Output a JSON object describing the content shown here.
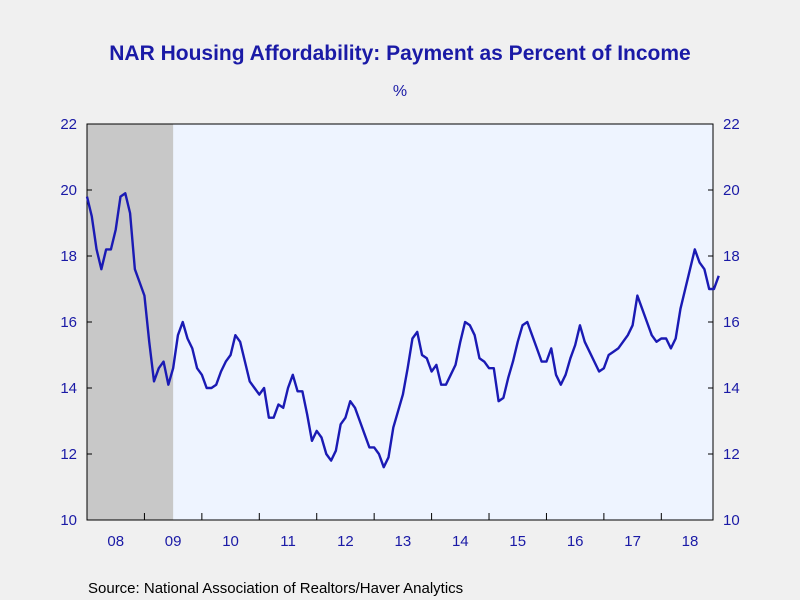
{
  "chart_data": {
    "type": "line",
    "title": "NAR Housing Affordability: Payment as Percent of Income",
    "unit": "%",
    "source": "Source:  National Association of Realtors/Haver Analytics",
    "ylim": [
      10,
      22
    ],
    "yticks": [
      10,
      12,
      14,
      16,
      18,
      20,
      22
    ],
    "yticks_right": [
      10,
      12,
      14,
      16,
      18,
      20,
      22
    ],
    "xlim": [
      2008.0,
      2018.9
    ],
    "xtick_labels": [
      "08",
      "09",
      "10",
      "11",
      "12",
      "13",
      "14",
      "15",
      "16",
      "17",
      "18"
    ],
    "recession_shading": {
      "start": 2008.0,
      "end": 2009.5,
      "color": "#c8c8c8"
    },
    "plot_background": "#eef4ff",
    "line_color": "#1a1ab4",
    "grid": false,
    "series": [
      {
        "start": "2008-01",
        "frequency": "monthly",
        "values": [
          19.8,
          19.2,
          18.2,
          17.6,
          18.2,
          18.2,
          18.8,
          19.8,
          19.9,
          19.3,
          17.6,
          17.2,
          16.8,
          15.4,
          14.2,
          14.6,
          14.8,
          14.1,
          14.6,
          15.6,
          16.0,
          15.5,
          15.2,
          14.6,
          14.4,
          14.0,
          14.0,
          14.1,
          14.5,
          14.8,
          15.0,
          15.6,
          15.4,
          14.8,
          14.2,
          14.0,
          13.8,
          14.0,
          13.1,
          13.1,
          13.5,
          13.4,
          14.0,
          14.4,
          13.9,
          13.9,
          13.2,
          12.4,
          12.7,
          12.5,
          12.0,
          11.8,
          12.1,
          12.9,
          13.1,
          13.6,
          13.4,
          13.0,
          12.6,
          12.2,
          12.2,
          12.0,
          11.6,
          11.9,
          12.8,
          13.3,
          13.8,
          14.6,
          15.5,
          15.7,
          15.0,
          14.9,
          14.5,
          14.7,
          14.1,
          14.1,
          14.4,
          14.7,
          15.4,
          16.0,
          15.9,
          15.6,
          14.9,
          14.8,
          14.6,
          14.6,
          13.6,
          13.7,
          14.3,
          14.8,
          15.4,
          15.9,
          16.0,
          15.6,
          15.2,
          14.8,
          14.8,
          15.2,
          14.4,
          14.1,
          14.4,
          14.9,
          15.3,
          15.9,
          15.4,
          15.1,
          14.8,
          14.5,
          14.6,
          15.0,
          15.1,
          15.2,
          15.4,
          15.6,
          15.9,
          16.8,
          16.4,
          16.0,
          15.6,
          15.4,
          15.5,
          15.5,
          15.2,
          15.5,
          16.4,
          17.0,
          17.6,
          18.2,
          17.8,
          17.6,
          17.0,
          17.0,
          17.4
        ]
      }
    ]
  }
}
